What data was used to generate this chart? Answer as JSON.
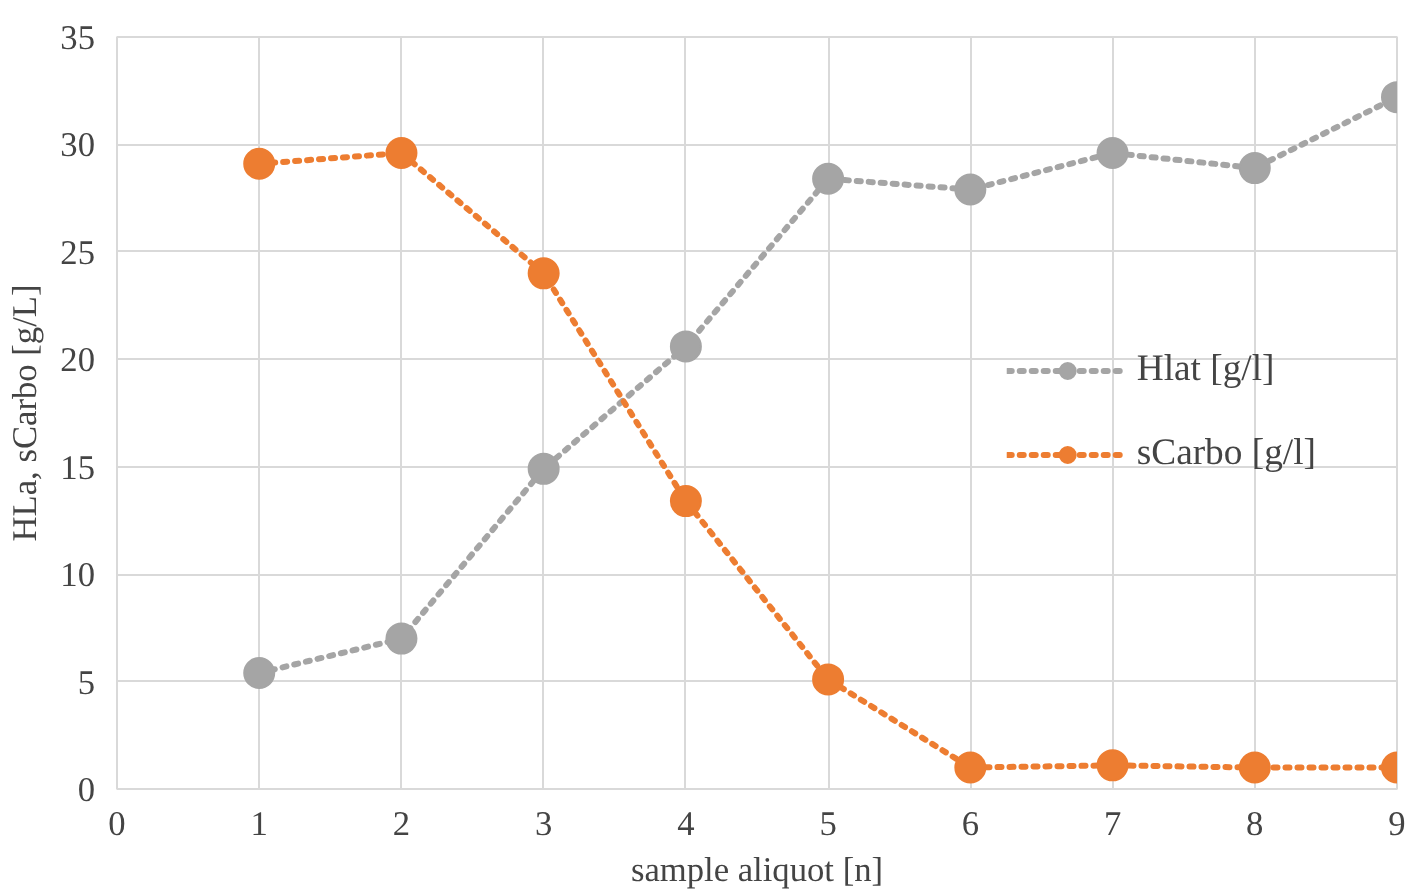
{
  "chart_data": {
    "type": "line",
    "xlabel": "sample aliquot [n]",
    "ylabel": "HLa, sCarbo [g/L]",
    "x": [
      1,
      2,
      3,
      4,
      5,
      6,
      7,
      8,
      9
    ],
    "series": [
      {
        "name": "Hlat [g/l]",
        "color": "#a5a5a5",
        "values": [
          5.4,
          7.0,
          14.9,
          20.6,
          28.4,
          27.9,
          29.6,
          28.9,
          32.2
        ]
      },
      {
        "name": "sCarbo [g/l]",
        "color": "#ed7d31",
        "values": [
          29.1,
          29.6,
          24.0,
          13.4,
          5.1,
          1.0,
          1.1,
          1.0,
          1.0
        ]
      }
    ],
    "xlim": [
      0,
      9
    ],
    "xticks": [
      0,
      1,
      2,
      3,
      4,
      5,
      6,
      7,
      8,
      9
    ],
    "ylim": [
      0,
      35
    ],
    "yticks": [
      0,
      5,
      10,
      15,
      20,
      25,
      30,
      35
    ],
    "grid": true,
    "legend": "right",
    "marker": "circle",
    "line_style": "dotted"
  }
}
